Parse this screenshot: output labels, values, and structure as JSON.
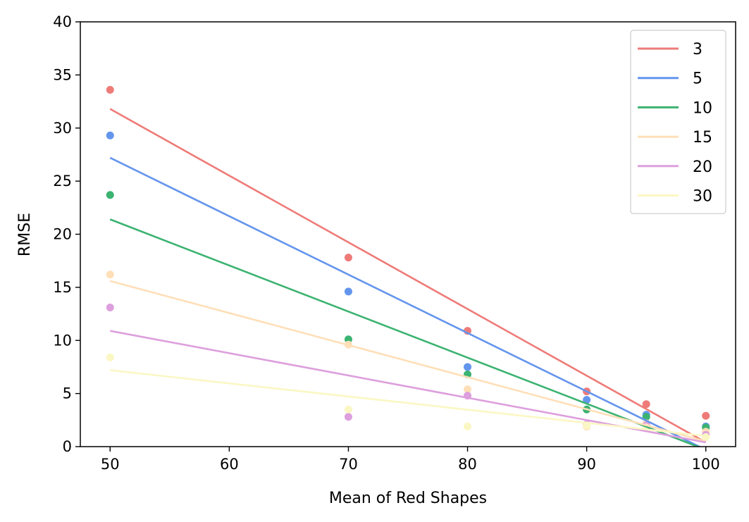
{
  "chart_data": {
    "type": "scatter",
    "title": "",
    "xlabel": "Mean of Red Shapes",
    "ylabel": "RMSE",
    "xlim": [
      47.5,
      102.5
    ],
    "ylim": [
      0,
      40
    ],
    "xticks": [
      50,
      60,
      70,
      80,
      90,
      100
    ],
    "yticks": [
      0,
      5,
      10,
      15,
      20,
      25,
      30,
      35,
      40
    ],
    "grid": false,
    "legend_position": "top-right",
    "series": [
      {
        "name": "3",
        "color": "#ee7b78",
        "points": [
          [
            50,
            33.6
          ],
          [
            70,
            17.8
          ],
          [
            80,
            10.9
          ],
          [
            90,
            5.2
          ],
          [
            95,
            4.0
          ],
          [
            100,
            2.9
          ]
        ],
        "fit": [
          [
            50,
            31.8
          ],
          [
            100,
            0.4
          ]
        ]
      },
      {
        "name": "5",
        "color": "#6495ed",
        "points": [
          [
            50,
            29.3
          ],
          [
            70,
            14.6
          ],
          [
            80,
            7.5
          ],
          [
            90,
            4.4
          ],
          [
            95,
            3.0
          ],
          [
            100,
            1.9
          ]
        ],
        "fit": [
          [
            50,
            27.2
          ],
          [
            100,
            -0.3
          ]
        ]
      },
      {
        "name": "10",
        "color": "#3cb371",
        "points": [
          [
            50,
            23.7
          ],
          [
            70,
            10.1
          ],
          [
            80,
            6.8
          ],
          [
            90,
            3.5
          ],
          [
            95,
            2.8
          ],
          [
            100,
            1.8
          ]
        ],
        "fit": [
          [
            50,
            21.4
          ],
          [
            100,
            -0.3
          ]
        ]
      },
      {
        "name": "15",
        "color": "#ffdfb8",
        "points": [
          [
            50,
            16.2
          ],
          [
            70,
            9.6
          ],
          [
            80,
            5.4
          ],
          [
            90,
            1.9
          ],
          [
            95,
            2.2
          ],
          [
            100,
            1.4
          ]
        ],
        "fit": [
          [
            50,
            15.6
          ],
          [
            100,
            0.5
          ]
        ]
      },
      {
        "name": "20",
        "color": "#dd9fdd",
        "points": [
          [
            50,
            13.1
          ],
          [
            70,
            2.8
          ],
          [
            80,
            4.8
          ],
          [
            90,
            2.1
          ],
          [
            95,
            2.0
          ],
          [
            100,
            1.1
          ]
        ],
        "fit": [
          [
            50,
            10.9
          ],
          [
            100,
            0.4
          ]
        ]
      },
      {
        "name": "30",
        "color": "#fbf7c4",
        "points": [
          [
            50,
            8.4
          ],
          [
            70,
            3.5
          ],
          [
            80,
            1.9
          ],
          [
            90,
            2.0
          ],
          [
            95,
            1.8
          ],
          [
            100,
            0.9
          ]
        ],
        "fit": [
          [
            50,
            7.2
          ],
          [
            100,
            1.0
          ]
        ]
      }
    ]
  }
}
